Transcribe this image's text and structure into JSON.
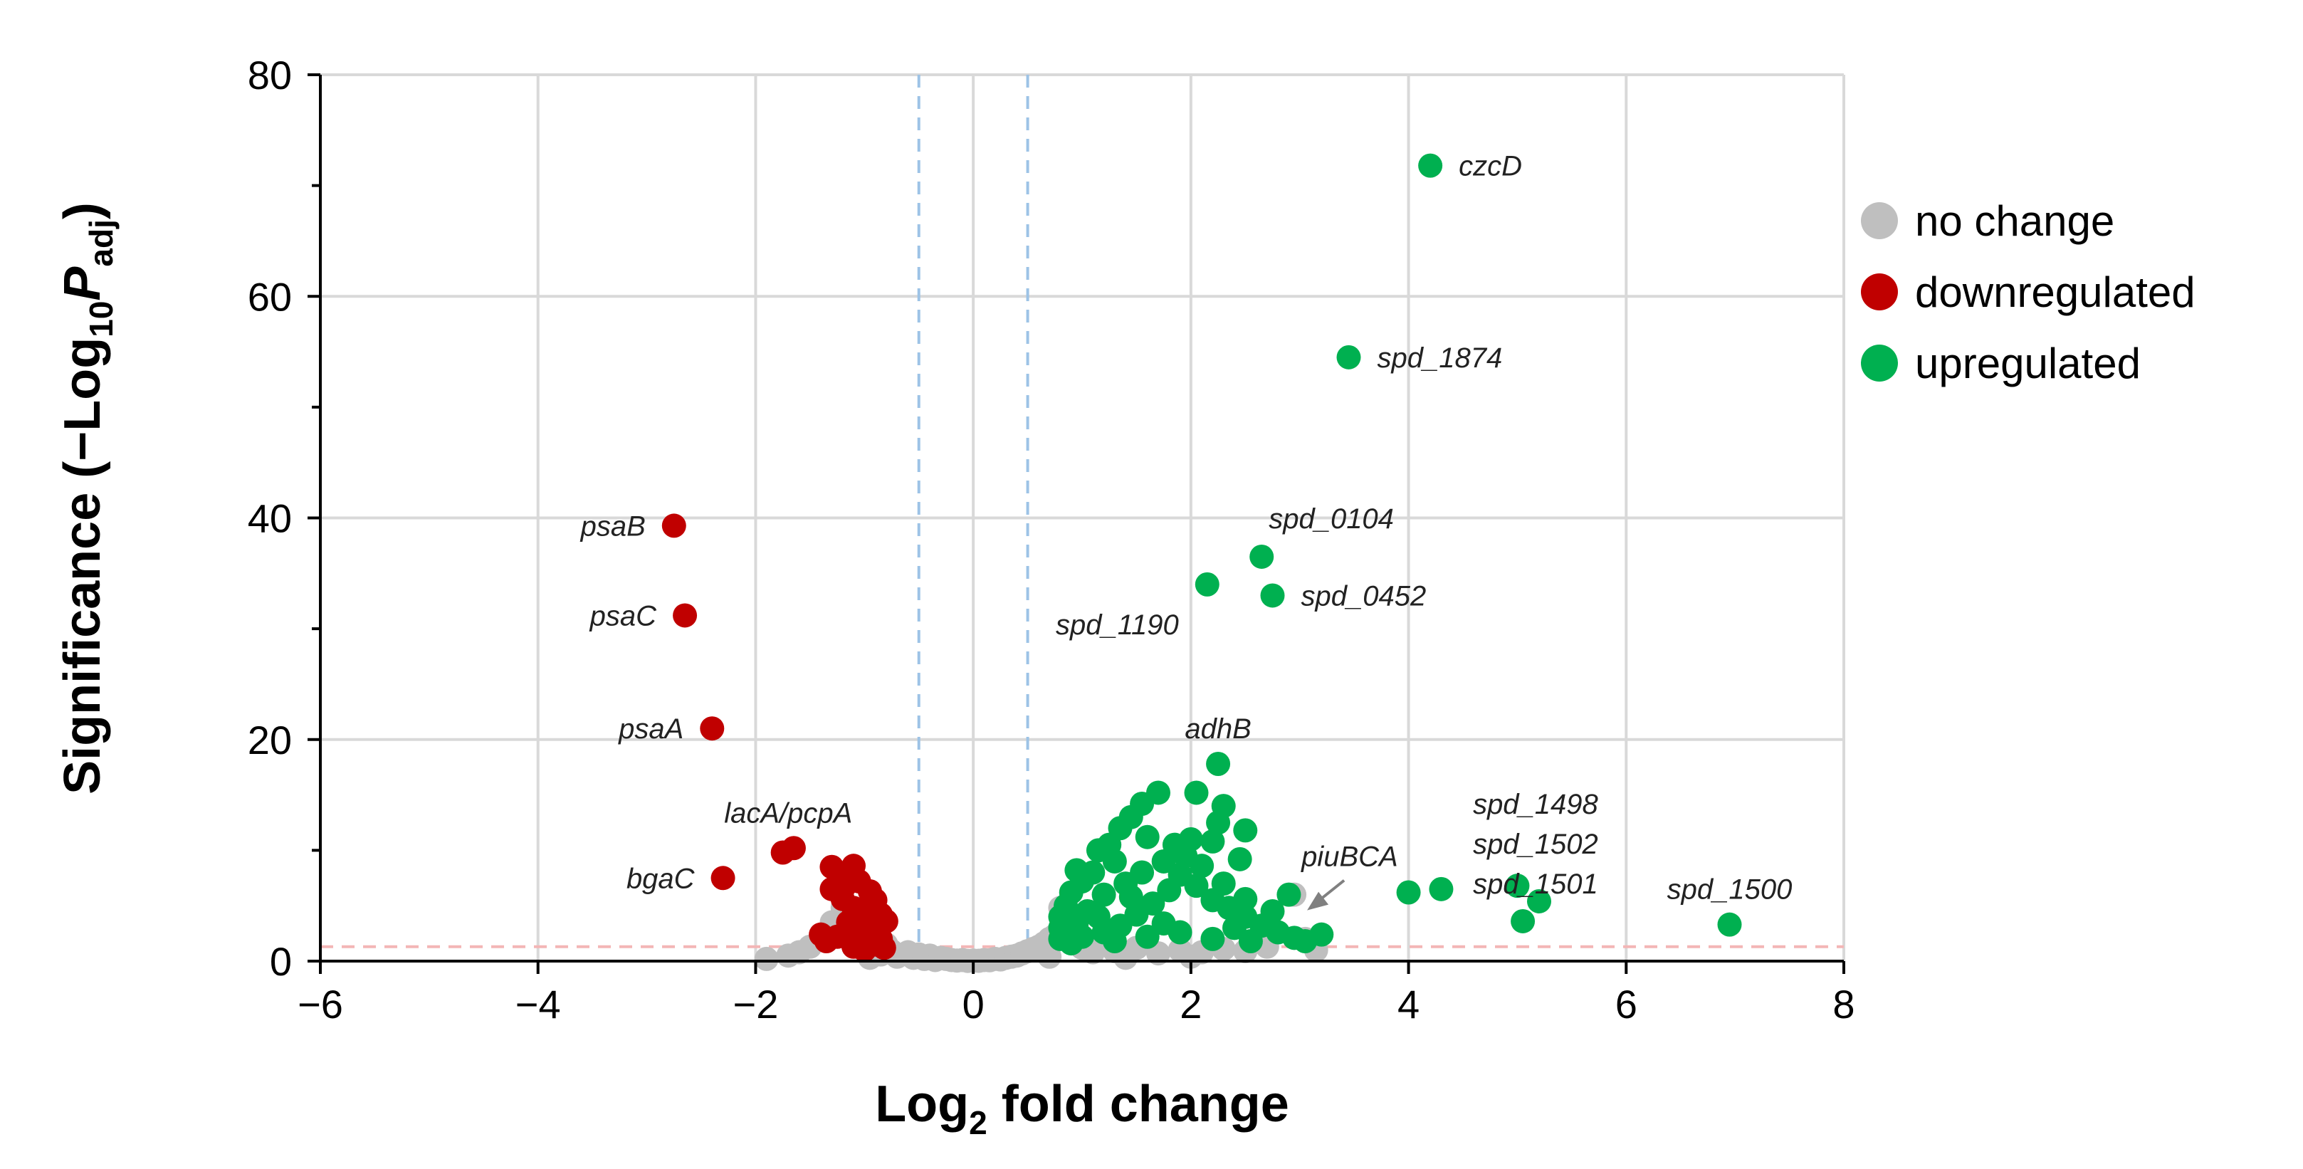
{
  "chart_data": {
    "type": "scatter",
    "title": "",
    "xlabel": {
      "prefix": "Log",
      "sub": "2",
      "suffix": " fold change"
    },
    "ylabel": {
      "prefix": "Significance (−Log",
      "sub": "10",
      "italic": "P",
      "italic_sub": "adj",
      "suffix": ")"
    },
    "xlim": [
      -6,
      8
    ],
    "ylim": [
      0,
      80
    ],
    "x_ticks": [
      -6,
      -4,
      -2,
      0,
      2,
      4,
      6,
      8
    ],
    "x_tick_labels": [
      "−6",
      "−4",
      "−2",
      "0",
      "2",
      "4",
      "6",
      "8"
    ],
    "y_ticks": [
      0,
      20,
      40,
      60,
      80
    ],
    "y_tick_labels": [
      "0",
      "20",
      "40",
      "60",
      "80"
    ],
    "grid": true,
    "thresholds": {
      "fold_change": [
        -0.5,
        0.5
      ],
      "significance": 1.3
    },
    "colors": {
      "no_change": "#bfbfbf",
      "downregulated": "#c00000",
      "upregulated": "#00b050",
      "grid": "#d9d9d9",
      "fc_threshold": "#9dc3e6",
      "sig_threshold": "#f4b6b6",
      "arrow": "#808080"
    },
    "legend": {
      "position": "right",
      "items": [
        {
          "key": "no_change",
          "label": "no change"
        },
        {
          "key": "downregulated",
          "label": "downregulated"
        },
        {
          "key": "upregulated",
          "label": "upregulated"
        }
      ]
    },
    "series": [
      {
        "name": "no change",
        "key": "no_change",
        "points": [
          [
            -1.9,
            0.2
          ],
          [
            -1.6,
            0.8
          ],
          [
            -1.5,
            1.3
          ],
          [
            -1.4,
            2.0
          ],
          [
            -1.3,
            3.5
          ],
          [
            -1.2,
            4.8
          ],
          [
            -1.1,
            2.5
          ],
          [
            -1.0,
            1.8
          ],
          [
            -0.9,
            1.2
          ],
          [
            -0.85,
            0.6
          ],
          [
            -0.8,
            1.5
          ],
          [
            -0.75,
            0.9
          ],
          [
            -0.7,
            0.4
          ],
          [
            -0.6,
            0.8
          ],
          [
            -0.55,
            0.3
          ],
          [
            -0.5,
            0.6
          ],
          [
            -0.45,
            0.2
          ],
          [
            -0.4,
            0.5
          ],
          [
            -0.35,
            0.1
          ],
          [
            -0.3,
            0.3
          ],
          [
            -0.25,
            0.2
          ],
          [
            -0.2,
            0.1
          ],
          [
            -0.15,
            0.05
          ],
          [
            -0.1,
            0.1
          ],
          [
            -0.05,
            0.02
          ],
          [
            0.0,
            0.05
          ],
          [
            0.05,
            0.03
          ],
          [
            0.1,
            0.1
          ],
          [
            0.15,
            0.08
          ],
          [
            0.2,
            0.2
          ],
          [
            0.25,
            0.15
          ],
          [
            0.3,
            0.3
          ],
          [
            0.35,
            0.4
          ],
          [
            0.4,
            0.5
          ],
          [
            0.45,
            0.7
          ],
          [
            0.5,
            0.9
          ],
          [
            0.55,
            1.1
          ],
          [
            0.6,
            1.3
          ],
          [
            0.65,
            1.6
          ],
          [
            0.7,
            2.0
          ],
          [
            0.75,
            2.3
          ],
          [
            0.8,
            4.8
          ],
          [
            0.85,
            3.0
          ],
          [
            0.9,
            2.6
          ],
          [
            0.95,
            1.8
          ],
          [
            1.0,
            1.2
          ],
          [
            1.1,
            0.8
          ],
          [
            1.2,
            1.5
          ],
          [
            1.3,
            0.9
          ],
          [
            1.5,
            1.2
          ],
          [
            1.7,
            0.7
          ],
          [
            1.9,
            1.0
          ],
          [
            2.1,
            0.8
          ],
          [
            2.3,
            1.1
          ],
          [
            2.5,
            0.9
          ],
          [
            2.7,
            1.3
          ],
          [
            2.95,
            6.0
          ],
          [
            3.05,
            2.0
          ],
          [
            3.15,
            1.0
          ],
          [
            -1.7,
            0.5
          ],
          [
            -0.95,
            0.3
          ],
          [
            0.7,
            0.4
          ],
          [
            1.4,
            0.3
          ],
          [
            2.0,
            0.4
          ]
        ]
      },
      {
        "name": "downregulated",
        "key": "downregulated",
        "points": [
          [
            -2.75,
            39.3
          ],
          [
            -2.65,
            31.2
          ],
          [
            -2.4,
            21.0
          ],
          [
            -2.3,
            7.5
          ],
          [
            -1.75,
            9.8
          ],
          [
            -1.65,
            10.2
          ],
          [
            -1.3,
            8.5
          ],
          [
            -1.2,
            7.5
          ],
          [
            -1.1,
            8.6
          ],
          [
            -1.05,
            7.2
          ],
          [
            -0.95,
            6.3
          ],
          [
            -0.9,
            5.5
          ],
          [
            -0.85,
            4.2
          ],
          [
            -0.8,
            3.6
          ],
          [
            -1.3,
            6.5
          ],
          [
            -1.2,
            5.6
          ],
          [
            -1.1,
            4.8
          ],
          [
            -1.0,
            4.0
          ],
          [
            -1.15,
            3.5
          ],
          [
            -1.05,
            2.8
          ],
          [
            -0.95,
            2.4
          ],
          [
            -0.85,
            2.0
          ],
          [
            -1.25,
            2.2
          ],
          [
            -1.35,
            1.8
          ],
          [
            -1.1,
            1.3
          ],
          [
            -0.9,
            1.5
          ],
          [
            -1.0,
            1.0
          ],
          [
            -0.82,
            1.2
          ],
          [
            -1.4,
            2.4
          ],
          [
            -1.18,
            6.8
          ],
          [
            -0.88,
            3.1
          ]
        ]
      },
      {
        "name": "upregulated",
        "key": "upregulated",
        "points": [
          [
            4.2,
            71.8
          ],
          [
            3.45,
            54.5
          ],
          [
            2.65,
            36.5
          ],
          [
            2.15,
            34.0
          ],
          [
            2.75,
            33.0
          ],
          [
            2.25,
            17.8
          ],
          [
            4.0,
            6.2
          ],
          [
            4.3,
            6.5
          ],
          [
            5.0,
            6.8
          ],
          [
            5.05,
            3.6
          ],
          [
            5.2,
            5.4
          ],
          [
            6.95,
            3.3
          ],
          [
            1.7,
            15.2
          ],
          [
            1.55,
            14.2
          ],
          [
            1.45,
            13.0
          ],
          [
            1.35,
            12.0
          ],
          [
            1.25,
            10.5
          ],
          [
            1.15,
            10.0
          ],
          [
            2.05,
            15.2
          ],
          [
            2.3,
            14.0
          ],
          [
            2.5,
            11.8
          ],
          [
            2.25,
            12.5
          ],
          [
            2.0,
            11.0
          ],
          [
            1.85,
            10.5
          ],
          [
            1.6,
            11.2
          ],
          [
            2.2,
            10.8
          ],
          [
            2.45,
            9.2
          ],
          [
            1.3,
            9.0
          ],
          [
            1.1,
            8.0
          ],
          [
            1.0,
            7.2
          ],
          [
            0.9,
            6.2
          ],
          [
            0.85,
            5.0
          ],
          [
            0.8,
            4.0
          ],
          [
            0.8,
            3.0
          ],
          [
            0.8,
            2.0
          ],
          [
            0.95,
            3.4
          ],
          [
            1.05,
            4.5
          ],
          [
            1.2,
            6.0
          ],
          [
            1.4,
            7.0
          ],
          [
            1.55,
            8.0
          ],
          [
            1.75,
            9.0
          ],
          [
            1.9,
            7.8
          ],
          [
            2.05,
            6.8
          ],
          [
            2.2,
            5.5
          ],
          [
            2.35,
            4.8
          ],
          [
            2.5,
            4.0
          ],
          [
            2.65,
            3.2
          ],
          [
            2.8,
            2.6
          ],
          [
            2.95,
            2.1
          ],
          [
            3.05,
            1.8
          ],
          [
            3.2,
            2.4
          ],
          [
            2.9,
            6.0
          ],
          [
            2.75,
            4.5
          ],
          [
            2.5,
            5.6
          ],
          [
            2.3,
            7.0
          ],
          [
            2.1,
            8.6
          ],
          [
            1.95,
            9.5
          ],
          [
            1.8,
            6.4
          ],
          [
            1.65,
            5.2
          ],
          [
            1.5,
            4.2
          ],
          [
            1.35,
            3.2
          ],
          [
            1.2,
            2.6
          ],
          [
            1.0,
            2.2
          ],
          [
            0.9,
            1.6
          ],
          [
            1.3,
            1.8
          ],
          [
            1.6,
            2.2
          ],
          [
            1.9,
            2.6
          ],
          [
            2.2,
            2.0
          ],
          [
            2.55,
            1.8
          ],
          [
            1.75,
            3.4
          ],
          [
            1.45,
            5.8
          ],
          [
            1.15,
            4.0
          ],
          [
            2.4,
            3.0
          ],
          [
            0.95,
            8.2
          ]
        ]
      }
    ],
    "annotations": [
      {
        "text": "czcD",
        "x": 4.2,
        "y": 71.8,
        "anchor": "right"
      },
      {
        "text": "spd_1874",
        "x": 3.45,
        "y": 54.5,
        "anchor": "right"
      },
      {
        "text": "spd_0104",
        "x": 2.65,
        "y": 36.5,
        "anchor": "above-right"
      },
      {
        "text": "spd_0452",
        "x": 2.75,
        "y": 33.0,
        "anchor": "right"
      },
      {
        "text": "spd_1190",
        "x": 2.15,
        "y": 34.0,
        "anchor": "below-left"
      },
      {
        "text": "adhB",
        "x": 2.25,
        "y": 17.8,
        "anchor": "above"
      },
      {
        "text": "piuBCA",
        "x": 2.95,
        "y": 6.0,
        "anchor": "above-right",
        "arrow": true
      },
      {
        "text": "spd_1498",
        "x": 5.05,
        "y": 14.2,
        "anchor": "stack"
      },
      {
        "text": "spd_1502",
        "x": 5.05,
        "y": 10.6,
        "anchor": "stack"
      },
      {
        "text": "spd_1501",
        "x": 5.05,
        "y": 7.0,
        "anchor": "stack"
      },
      {
        "text": "spd_1500",
        "x": 6.95,
        "y": 3.3,
        "anchor": "above"
      },
      {
        "text": "psaB",
        "x": -2.75,
        "y": 39.3,
        "anchor": "left"
      },
      {
        "text": "psaC",
        "x": -2.65,
        "y": 31.2,
        "anchor": "left"
      },
      {
        "text": "psaA",
        "x": -2.4,
        "y": 21.0,
        "anchor": "left"
      },
      {
        "text": "bgaC",
        "x": -2.3,
        "y": 7.5,
        "anchor": "left"
      },
      {
        "text": "lacA/pcpA",
        "x": -1.7,
        "y": 10.2,
        "anchor": "above"
      }
    ]
  }
}
